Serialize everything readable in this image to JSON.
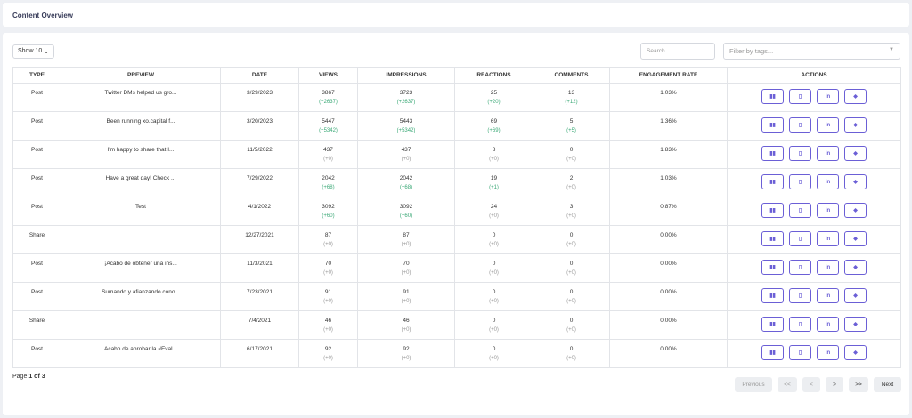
{
  "header": {
    "title": "Content Overview"
  },
  "controls": {
    "show_label": "Show 10",
    "search_placeholder": "Search...",
    "filter_placeholder": "Filter by tags..."
  },
  "table": {
    "columns": [
      "TYPE",
      "PREVIEW",
      "DATE",
      "VIEWS",
      "IMPRESSIONS",
      "REACTIONS",
      "COMMENTS",
      "ENGAGEMENT RATE",
      "ACTIONS"
    ],
    "rows": [
      {
        "type": "Post",
        "preview": "Twitter DMs helped us gro...",
        "date": "3/29/2023",
        "views": "3867",
        "views_delta": "(+2637)",
        "impressions": "3723",
        "impressions_delta": "(+2637)",
        "reactions": "25",
        "reactions_delta": "(+20)",
        "comments": "13",
        "comments_delta": "(+12)",
        "engagement": "1.03%"
      },
      {
        "type": "Post",
        "preview": "Been running xo.capital f...",
        "date": "3/20/2023",
        "views": "5447",
        "views_delta": "(+5342)",
        "impressions": "5443",
        "impressions_delta": "(+5342)",
        "reactions": "69",
        "reactions_delta": "(+69)",
        "comments": "5",
        "comments_delta": "(+5)",
        "engagement": "1.36%"
      },
      {
        "type": "Post",
        "preview": "I'm happy to share that I...",
        "date": "11/5/2022",
        "views": "437",
        "views_delta": "(+0)",
        "impressions": "437",
        "impressions_delta": "(+0)",
        "reactions": "8",
        "reactions_delta": "(+0)",
        "comments": "0",
        "comments_delta": "(+0)",
        "engagement": "1.83%"
      },
      {
        "type": "Post",
        "preview": "Have a great day! Check ...",
        "date": "7/29/2022",
        "views": "2042",
        "views_delta": "(+68)",
        "impressions": "2042",
        "impressions_delta": "(+68)",
        "reactions": "19",
        "reactions_delta": "(+1)",
        "comments": "2",
        "comments_delta": "(+0)",
        "engagement": "1.03%"
      },
      {
        "type": "Post",
        "preview": "Test",
        "date": "4/1/2022",
        "views": "3092",
        "views_delta": "(+60)",
        "impressions": "3092",
        "impressions_delta": "(+60)",
        "reactions": "24",
        "reactions_delta": "(+0)",
        "comments": "3",
        "comments_delta": "(+0)",
        "engagement": "0.87%"
      },
      {
        "type": "Share",
        "preview": "",
        "date": "12/27/2021",
        "views": "87",
        "views_delta": "(+0)",
        "impressions": "87",
        "impressions_delta": "(+0)",
        "reactions": "0",
        "reactions_delta": "(+0)",
        "comments": "0",
        "comments_delta": "(+0)",
        "engagement": "0.00%"
      },
      {
        "type": "Post",
        "preview": "¡Acabo de obtener una ins...",
        "date": "11/3/2021",
        "views": "70",
        "views_delta": "(+0)",
        "impressions": "70",
        "impressions_delta": "(+0)",
        "reactions": "0",
        "reactions_delta": "(+0)",
        "comments": "0",
        "comments_delta": "(+0)",
        "engagement": "0.00%"
      },
      {
        "type": "Post",
        "preview": "Sumando y afianzando cono...",
        "date": "7/23/2021",
        "views": "91",
        "views_delta": "(+0)",
        "impressions": "91",
        "impressions_delta": "(+0)",
        "reactions": "0",
        "reactions_delta": "(+0)",
        "comments": "0",
        "comments_delta": "(+0)",
        "engagement": "0.00%"
      },
      {
        "type": "Share",
        "preview": "",
        "date": "7/4/2021",
        "views": "46",
        "views_delta": "(+0)",
        "impressions": "46",
        "impressions_delta": "(+0)",
        "reactions": "0",
        "reactions_delta": "(+0)",
        "comments": "0",
        "comments_delta": "(+0)",
        "engagement": "0.00%"
      },
      {
        "type": "Post",
        "preview": "Acabo de aprobar la #Eval...",
        "date": "6/17/2021",
        "views": "92",
        "views_delta": "(+0)",
        "impressions": "92",
        "impressions_delta": "(+0)",
        "reactions": "0",
        "reactions_delta": "(+0)",
        "comments": "0",
        "comments_delta": "(+0)",
        "engagement": "0.00%"
      }
    ],
    "action_icons": [
      "chart-icon",
      "document-icon",
      "linkedin-icon",
      "tag-icon"
    ]
  },
  "pagination": {
    "page_label": "Page",
    "current": "1",
    "of_label": "of",
    "total": "3",
    "previous": "Previous",
    "first": "<<",
    "prev": "<",
    "next_arrow": ">",
    "last": ">>",
    "next": "Next"
  },
  "colors": {
    "accent": "#6b5fd6",
    "positive": "#3aa876",
    "muted": "#999999"
  }
}
